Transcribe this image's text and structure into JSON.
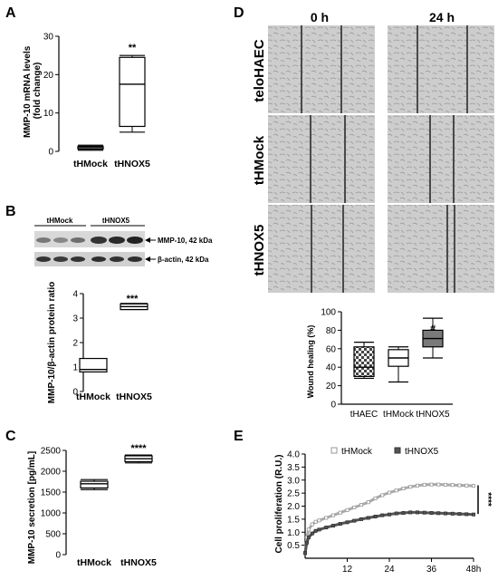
{
  "panels": {
    "A": {
      "label": "A",
      "ylabel": "MMP-10 mRNA levels (fold change)",
      "ylabel_lines": [
        "MMP-10 mRNA levels",
        "(fold change)"
      ],
      "significance": "**"
    },
    "B": {
      "label": "B",
      "blot": {
        "group_labels": [
          "tHMock",
          "tHNOX5"
        ],
        "band_labels": [
          "MMP-10, 42 kDa",
          "β-actin, 42 kDa"
        ]
      },
      "ylabel": "MMP-10/β-actin protein ratio",
      "significance": "***"
    },
    "C": {
      "label": "C",
      "ylabel": "MMP-10 secretion [pg/mL]",
      "significance": "****"
    },
    "D": {
      "label": "D",
      "time_labels": [
        "0 h",
        "24 h"
      ],
      "row_labels": [
        "teloHAEC",
        "tHMock",
        "tHNOX5"
      ],
      "ylabel": "Wound healing (%)",
      "significance_hash": "#",
      "significance_star": "*"
    },
    "E": {
      "label": "E",
      "ylabel": "Cell proliferation (R.U.)",
      "significance": "****"
    }
  },
  "chart_data": [
    {
      "panel": "A",
      "type": "box",
      "categories": [
        "tHMock",
        "tHNOX5"
      ],
      "boxes": [
        {
          "min": 0.3,
          "q1": 0.6,
          "median": 1.0,
          "q3": 1.3,
          "max": 1.6
        },
        {
          "min": 5.0,
          "q1": 6.5,
          "median": 17.5,
          "q3": 24.5,
          "max": 25.0
        }
      ],
      "ylim": [
        0,
        30
      ],
      "yticks": [
        0,
        10,
        20,
        30
      ]
    },
    {
      "panel": "B",
      "type": "box",
      "categories": [
        "tHMock",
        "tHNOX5"
      ],
      "boxes": [
        {
          "min": 0.8,
          "q1": 0.8,
          "median": 0.9,
          "q3": 1.35,
          "max": 1.35
        },
        {
          "min": 3.35,
          "q1": 3.35,
          "median": 3.47,
          "q3": 3.58,
          "max": 3.6
        }
      ],
      "ylim": [
        0,
        4
      ],
      "yticks": [
        0,
        1,
        2,
        3,
        4
      ]
    },
    {
      "panel": "C",
      "type": "box",
      "categories": [
        "tHMock",
        "tHNOX5"
      ],
      "boxes": [
        {
          "min": 1560,
          "q1": 1600,
          "median": 1700,
          "q3": 1760,
          "max": 1800
        },
        {
          "min": 2200,
          "q1": 2230,
          "median": 2300,
          "q3": 2370,
          "max": 2390
        }
      ],
      "ylim": [
        0,
        2500
      ],
      "yticks": [
        0,
        500,
        1000,
        1500,
        2000,
        2500
      ]
    },
    {
      "panel": "D",
      "type": "box",
      "categories": [
        "tHAEC",
        "tHMock",
        "tHNOX5"
      ],
      "boxes": [
        {
          "min": 28,
          "q1": 30,
          "median": 40,
          "q3": 62,
          "max": 67
        },
        {
          "min": 24,
          "q1": 41,
          "median": 50,
          "q3": 59,
          "max": 62
        },
        {
          "min": 50,
          "q1": 62,
          "median": 71,
          "q3": 80,
          "max": 93
        }
      ],
      "ylim": [
        0,
        100
      ],
      "yticks": [
        0,
        20,
        40,
        60,
        80,
        100
      ]
    },
    {
      "panel": "E",
      "type": "line",
      "xlabel": "",
      "ylabel": "Cell proliferation (R.U.)",
      "xlim": [
        0,
        48
      ],
      "ylim": [
        0,
        4.0
      ],
      "xticks": [
        12,
        24,
        36,
        48
      ],
      "xtick_labels": [
        "12",
        "24",
        "36",
        "48h"
      ],
      "yticks": [
        0.5,
        1.0,
        1.5,
        2.0,
        2.5,
        3.0,
        3.5,
        4.0
      ],
      "ytick_labels": [
        "0.5",
        "1.0",
        "1.5",
        "2.0",
        "2.5",
        "3.0",
        "3.5",
        "4.0"
      ],
      "series": [
        {
          "name": "tHMock",
          "color": "#aaaaaa",
          "x": [
            0,
            0.5,
            1,
            2,
            3,
            4,
            6,
            8,
            10,
            12,
            14,
            16,
            18,
            20,
            22,
            24,
            26,
            28,
            30,
            32,
            34,
            36,
            38,
            40,
            42,
            44,
            46,
            48
          ],
          "y": [
            0.2,
            0.8,
            1.1,
            1.3,
            1.4,
            1.45,
            1.55,
            1.65,
            1.75,
            1.85,
            1.95,
            2.05,
            2.15,
            2.3,
            2.42,
            2.52,
            2.6,
            2.68,
            2.74,
            2.79,
            2.82,
            2.83,
            2.83,
            2.82,
            2.81,
            2.8,
            2.79,
            2.78
          ]
        },
        {
          "name": "tHNOX5",
          "color": "#555555",
          "x": [
            0,
            0.5,
            1,
            2,
            3,
            4,
            6,
            8,
            10,
            12,
            14,
            16,
            18,
            20,
            22,
            24,
            26,
            28,
            30,
            32,
            34,
            36,
            38,
            40,
            42,
            44,
            46,
            48
          ],
          "y": [
            0.2,
            0.6,
            0.8,
            0.95,
            1.05,
            1.1,
            1.18,
            1.25,
            1.32,
            1.38,
            1.44,
            1.5,
            1.55,
            1.6,
            1.65,
            1.68,
            1.72,
            1.74,
            1.76,
            1.76,
            1.75,
            1.74,
            1.73,
            1.72,
            1.71,
            1.7,
            1.69,
            1.68
          ]
        }
      ]
    }
  ],
  "colors": {
    "micrograph_bg": "#c9c9c9",
    "wound_line": "#4a4a4a"
  }
}
